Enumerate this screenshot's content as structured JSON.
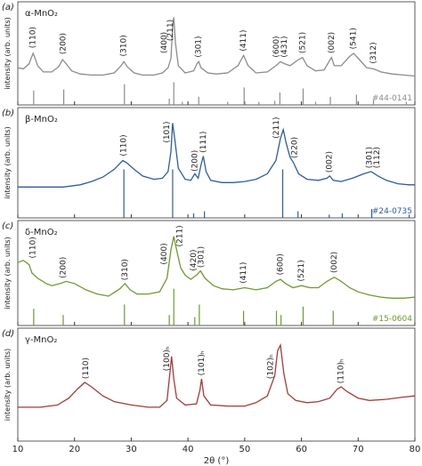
{
  "chart_data": [
    {
      "type": "line",
      "label": "(a)",
      "title": "α-MnO₂",
      "ylabel": "intensity (arb. units)",
      "color": "#8c8c8c",
      "xlim": [
        10,
        80
      ],
      "xticks": [
        10,
        20,
        30,
        40,
        50,
        60,
        70,
        80
      ],
      "ylim": [
        0,
        100
      ],
      "x": [
        10,
        11,
        12,
        12.4,
        12.7,
        13,
        13.5,
        14.5,
        16,
        17.2,
        17.9,
        18.5,
        19.5,
        21,
        23,
        25,
        27,
        28.2,
        28.7,
        29.3,
        30.5,
        32,
        34,
        35.5,
        36.5,
        37,
        37.3,
        37.5,
        37.8,
        38.3,
        39.5,
        41,
        41.6,
        41.9,
        42.3,
        43.5,
        45,
        47,
        48.8,
        49.8,
        50.6,
        52,
        54,
        55.5,
        56.3,
        57,
        58,
        59.5,
        60.2,
        61,
        62.5,
        64,
        65.3,
        65.8,
        67,
        68.5,
        69.2,
        70.2,
        71.5,
        72.7,
        74,
        76,
        78,
        80
      ],
      "values": [
        36,
        35,
        40,
        46,
        50,
        46,
        38,
        32,
        32,
        37,
        44,
        40,
        33,
        30,
        29,
        29,
        31,
        38,
        42,
        37,
        31,
        29,
        29,
        31,
        36,
        45,
        75,
        85,
        60,
        38,
        31,
        33,
        40,
        42,
        36,
        31,
        30,
        31,
        38,
        48,
        38,
        31,
        32,
        38,
        42,
        40,
        38,
        44,
        46,
        38,
        33,
        34,
        46,
        38,
        38,
        47,
        50,
        44,
        36,
        35,
        32,
        30,
        29,
        28
      ],
      "reference": {
        "label": "#44-0141",
        "color": "#8c8c8c",
        "x": [
          12.8,
          18.1,
          28.8,
          36.7,
          37.5,
          39,
          41.9,
          47,
          49.9,
          52.5,
          55.3,
          56.2,
          60.3,
          62.5,
          65.1,
          69.7,
          72.7,
          78.5
        ],
        "values": [
          14,
          15,
          20,
          6,
          22,
          3,
          8,
          3,
          17,
          3,
          4,
          12,
          16,
          3,
          8,
          10,
          5,
          3
        ]
      },
      "annotations": [
        {
          "text": "(110)",
          "x": 12.7,
          "y": 55
        },
        {
          "text": "(200)",
          "x": 18,
          "y": 49
        },
        {
          "text": "(310)",
          "x": 28.7,
          "y": 47
        },
        {
          "text": "(400)",
          "x": 35.8,
          "y": 50
        },
        {
          "text": "(211)",
          "x": 36.9,
          "y": 62
        },
        {
          "text": "(301)",
          "x": 41.9,
          "y": 46
        },
        {
          "text": "(411)",
          "x": 49.8,
          "y": 52
        },
        {
          "text": "(600)",
          "x": 55.6,
          "y": 46
        },
        {
          "text": "(431)",
          "x": 57,
          "y": 46
        },
        {
          "text": "(521)",
          "x": 60.2,
          "y": 50
        },
        {
          "text": "(002)",
          "x": 65.3,
          "y": 50
        },
        {
          "text": "(541)",
          "x": 69.2,
          "y": 54
        },
        {
          "text": "(312)",
          "x": 72.7,
          "y": 40
        }
      ]
    },
    {
      "type": "line",
      "label": "(b)",
      "title": "β-MnO₂",
      "ylabel": "intensity (arb. units)",
      "color": "#2d5d9f",
      "xlim": [
        10,
        80
      ],
      "xticks": [
        10,
        20,
        30,
        40,
        50,
        60,
        70,
        80
      ],
      "ylim": [
        0,
        100
      ],
      "x": [
        10,
        14,
        18,
        21,
        23,
        25,
        27,
        28.5,
        29.2,
        30.5,
        32,
        34,
        35.5,
        36.5,
        37,
        37.3,
        37.7,
        38.3,
        39.5,
        40.5,
        41.2,
        41.8,
        42.3,
        42.7,
        43.2,
        44,
        46,
        48,
        50,
        52,
        54,
        55.5,
        56.3,
        56.8,
        57.3,
        58,
        58.6,
        59.5,
        61,
        63,
        64.5,
        65,
        65.6,
        67,
        69,
        71,
        72.3,
        73.5,
        75,
        77,
        79,
        80
      ],
      "values": [
        28,
        28,
        28,
        30,
        33,
        37,
        44,
        52,
        50,
        44,
        38,
        35,
        36,
        42,
        60,
        86,
        70,
        45,
        35,
        34,
        40,
        36,
        48,
        56,
        42,
        34,
        32,
        32,
        33,
        35,
        40,
        52,
        72,
        80,
        68,
        55,
        50,
        40,
        35,
        34,
        36,
        38,
        34,
        33,
        36,
        40,
        42,
        38,
        34,
        31,
        30,
        30
      ],
      "reference": {
        "label": "#24-0735",
        "color": "#2d5d9f",
        "x": [
          28.7,
          37.3,
          41,
          42.9,
          56.7,
          59.4,
          64.9,
          67.2,
          72.4,
          79
        ],
        "values": [
          44,
          44,
          4,
          6,
          44,
          6,
          3,
          4,
          8,
          3
        ]
      },
      "annotations": [
        {
          "text": "(110)",
          "x": 28.7,
          "y": 56
        },
        {
          "text": "(101)",
          "x": 36.3,
          "y": 68
        },
        {
          "text": "(200)",
          "x": 41.2,
          "y": 42
        },
        {
          "text": "(111)",
          "x": 42.7,
          "y": 59
        },
        {
          "text": "(211)",
          "x": 55.6,
          "y": 72
        },
        {
          "text": "(220)",
          "x": 58.8,
          "y": 54
        },
        {
          "text": "(002)",
          "x": 64.9,
          "y": 41
        },
        {
          "text": "(301)",
          "x": 72,
          "y": 45
        },
        {
          "text": "(112)",
          "x": 73.3,
          "y": 45
        }
      ]
    },
    {
      "type": "line",
      "label": "(c)",
      "title": "δ-MnO₂",
      "ylabel": "intensity (arb. units)",
      "color": "#6f9a2e",
      "xlim": [
        10,
        80
      ],
      "xticks": [
        10,
        20,
        30,
        40,
        50,
        60,
        70,
        80
      ],
      "ylim": [
        0,
        100
      ],
      "x": [
        10,
        11,
        12,
        12.5,
        13.5,
        15,
        16,
        17.5,
        18.5,
        20,
        22,
        24,
        26,
        28,
        28.9,
        29.8,
        31,
        33,
        35,
        36.3,
        37,
        37.5,
        38,
        38.7,
        39.5,
        40.5,
        41.5,
        42.2,
        43,
        44.5,
        46,
        48,
        50,
        52,
        54,
        55.5,
        56.3,
        57.2,
        58.5,
        60,
        61.5,
        63,
        64.5,
        65.8,
        67,
        68.5,
        70,
        72,
        74,
        76,
        78,
        80
      ],
      "values": [
        60,
        62,
        58,
        50,
        45,
        40,
        38,
        40,
        42,
        40,
        34,
        30,
        28,
        35,
        40,
        34,
        30,
        30,
        32,
        45,
        72,
        85,
        72,
        55,
        48,
        44,
        48,
        52,
        45,
        38,
        35,
        34,
        36,
        34,
        36,
        42,
        44,
        40,
        36,
        38,
        36,
        36,
        42,
        46,
        42,
        36,
        32,
        29,
        27,
        26,
        26,
        27
      ],
      "reference": {
        "label": "#15-0604",
        "color": "#6f9a2e",
        "x": [
          12.8,
          18,
          28.8,
          36.7,
          37.5,
          41.2,
          42,
          49.8,
          55.6,
          56.4,
          60.3,
          65.6
        ],
        "values": [
          16,
          10,
          20,
          10,
          35,
          8,
          20,
          14,
          14,
          10,
          18,
          14
        ]
      },
      "annotations": [
        {
          "text": "(110)",
          "x": 12.7,
          "y": 64
        },
        {
          "text": "(200)",
          "x": 18,
          "y": 45
        },
        {
          "text": "(310)",
          "x": 28.9,
          "y": 43
        },
        {
          "text": "(400)",
          "x": 35.8,
          "y": 58
        },
        {
          "text": "(211)",
          "x": 38.6,
          "y": 75
        },
        {
          "text": "(420)",
          "x": 41,
          "y": 52
        },
        {
          "text": "(301)",
          "x": 42.3,
          "y": 55
        },
        {
          "text": "(411)",
          "x": 49.8,
          "y": 40
        },
        {
          "text": "(600)",
          "x": 56.3,
          "y": 48
        },
        {
          "text": "(521)",
          "x": 60,
          "y": 42
        },
        {
          "text": "(002)",
          "x": 65.8,
          "y": 50
        }
      ]
    },
    {
      "type": "line",
      "label": "(d)",
      "title": "γ-MnO₂",
      "ylabel": "intensity (arb. units)",
      "xlabel": "2θ (°)",
      "color": "#a33b3b",
      "xlim": [
        10,
        80
      ],
      "xticks": [
        10,
        20,
        30,
        40,
        50,
        60,
        70,
        80
      ],
      "ylim": [
        0,
        100
      ],
      "x": [
        10,
        14,
        17,
        19,
        20.5,
        21.8,
        23,
        25,
        27,
        30,
        33,
        35,
        36.3,
        36.8,
        37.1,
        37.5,
        38,
        39.5,
        41.5,
        42.1,
        42.4,
        42.8,
        44,
        47,
        50,
        52,
        54,
        55.3,
        55.8,
        56.3,
        56.9,
        57.6,
        59,
        61,
        63,
        65,
        66.3,
        67,
        68,
        70,
        72,
        75,
        78,
        80
      ],
      "values": [
        30,
        30,
        32,
        38,
        46,
        52,
        48,
        40,
        35,
        32,
        30,
        30,
        36,
        60,
        75,
        55,
        38,
        32,
        33,
        45,
        55,
        40,
        32,
        31,
        31,
        34,
        40,
        58,
        80,
        85,
        60,
        42,
        36,
        34,
        35,
        38,
        46,
        48,
        44,
        38,
        36,
        37,
        39,
        40
      ],
      "annotations": [
        {
          "text": "(110)",
          "x": 22,
          "y": 55
        },
        {
          "text": "(100)ₕ",
          "x": 36.3,
          "y": 62
        },
        {
          "text": "(101)ₕ",
          "x": 42.4,
          "y": 58
        },
        {
          "text": "(102)ₕ",
          "x": 54.6,
          "y": 55
        },
        {
          "text": "(110)ₕ",
          "x": 67,
          "y": 51
        }
      ]
    }
  ]
}
